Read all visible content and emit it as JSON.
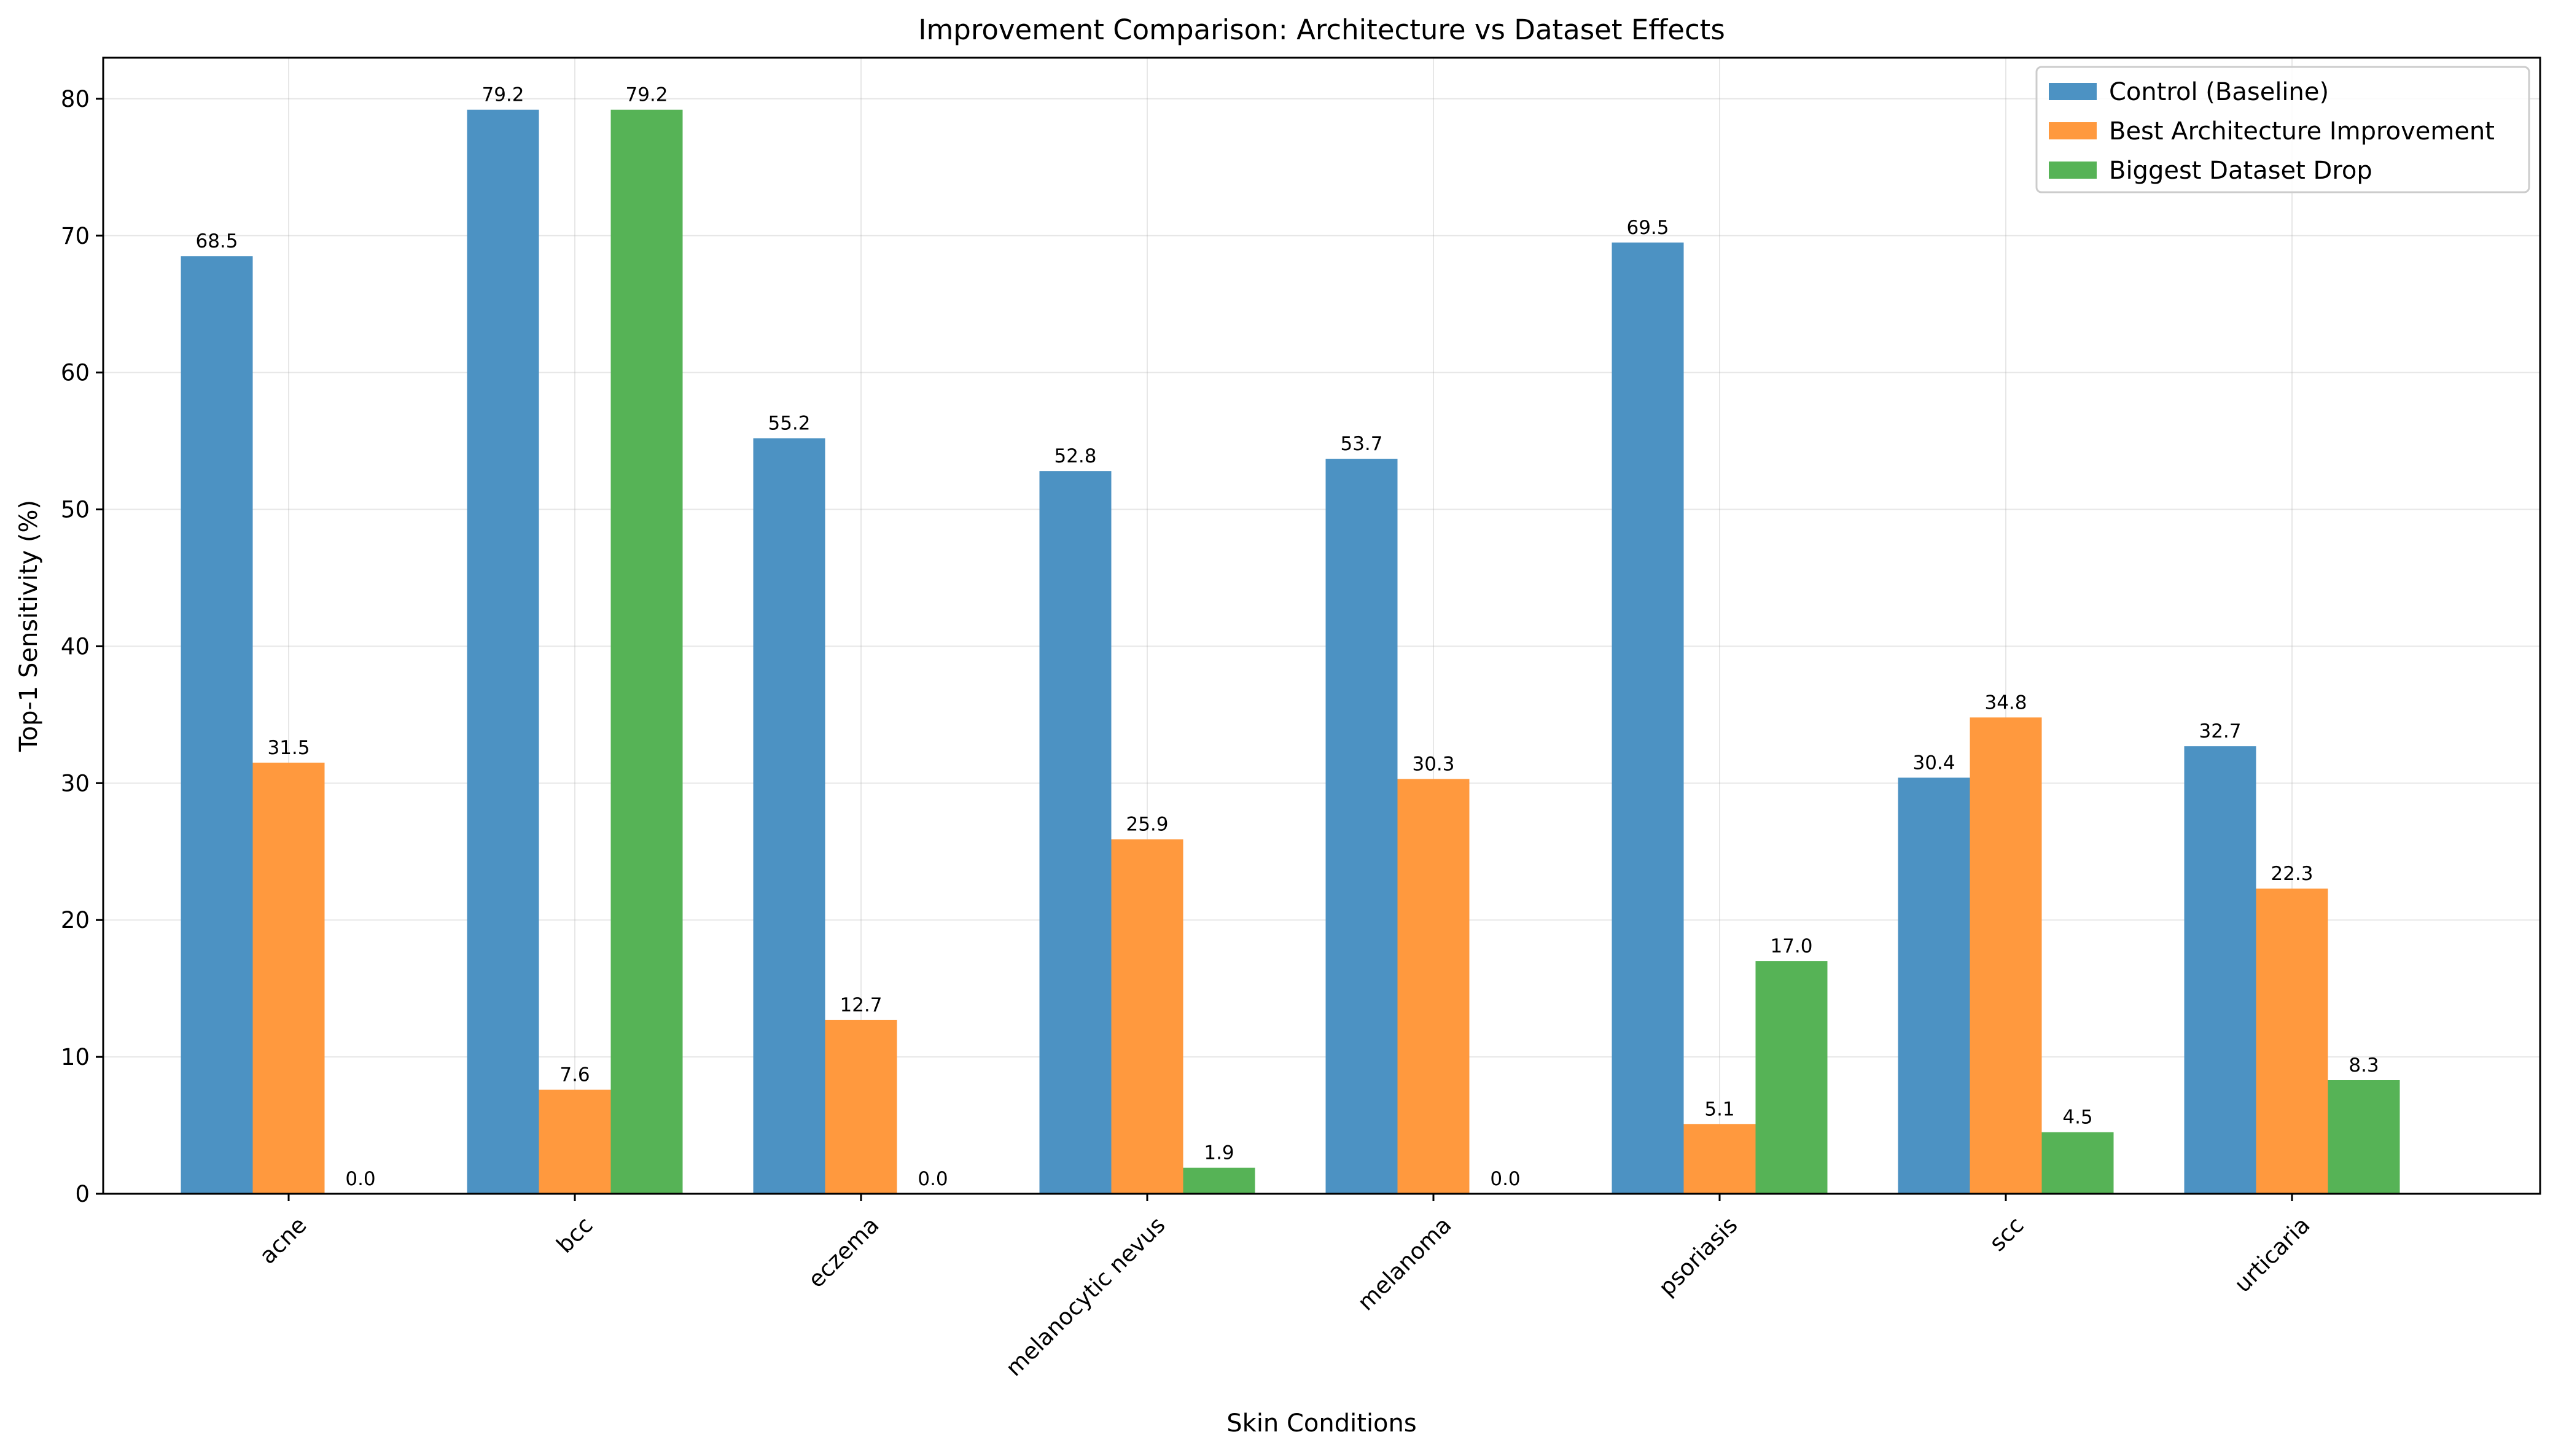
{
  "chart_data": {
    "type": "bar",
    "title": "Improvement Comparison: Architecture vs Dataset Effects",
    "xlabel": "Skin Conditions",
    "ylabel": "Top-1 Sensitivity (%)",
    "ylim": [
      0,
      83
    ],
    "yticks": [
      "0",
      "10",
      "20",
      "30",
      "40",
      "50",
      "60",
      "70",
      "80"
    ],
    "grid": true,
    "legend_position": "top-right",
    "categories": [
      "acne",
      "bcc",
      "eczema",
      "melanocytic nevus",
      "melanoma",
      "psoriasis",
      "scc",
      "urticaria"
    ],
    "series": [
      {
        "name": "Control (Baseline)",
        "color": "#4c92c3",
        "values": [
          68.5,
          79.2,
          55.2,
          52.8,
          53.7,
          69.5,
          30.4,
          32.7
        ],
        "labels": [
          "68.5",
          "79.2",
          "55.2",
          "52.8",
          "53.7",
          "69.5",
          "30.4",
          "32.7"
        ]
      },
      {
        "name": "Best Architecture Improvement",
        "color": "#ff993e",
        "values": [
          31.5,
          7.6,
          12.7,
          25.9,
          30.3,
          5.1,
          34.8,
          22.3
        ],
        "labels": [
          "31.5",
          "7.6",
          "12.7",
          "25.9",
          "30.3",
          "5.1",
          "34.8",
          "22.3"
        ]
      },
      {
        "name": "Biggest Dataset Drop",
        "color": "#56b356",
        "values": [
          0.0,
          79.2,
          0.0,
          1.9,
          0.0,
          17.0,
          4.5,
          8.3
        ],
        "labels": [
          "0.0",
          "79.2",
          "0.0",
          "1.9",
          "0.0",
          "17.0",
          "4.5",
          "8.3"
        ]
      }
    ]
  }
}
